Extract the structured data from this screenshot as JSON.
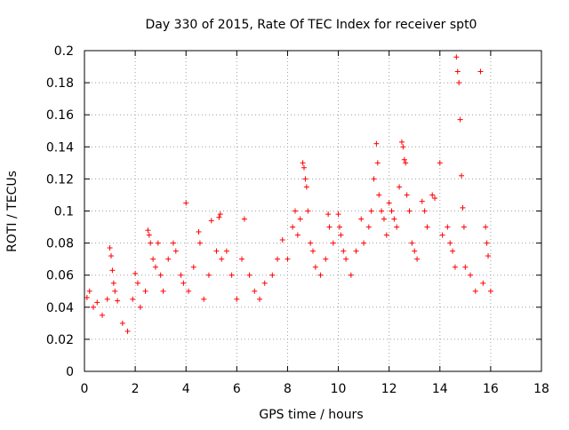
{
  "chart_data": {
    "type": "scatter",
    "title": "Day 330 of 2015, Rate Of TEC Index for receiver spt0",
    "xlabel": "GPS time / hours",
    "ylabel": "ROTI / TECUs",
    "xlim": [
      0,
      18
    ],
    "ylim": [
      0,
      0.2
    ],
    "x_ticks": [
      0,
      2,
      4,
      6,
      8,
      10,
      12,
      14,
      16,
      18
    ],
    "x_tick_labels": [
      "0",
      "2",
      "4",
      "6",
      "8",
      "10",
      "12",
      "14",
      "16",
      "18"
    ],
    "y_ticks": [
      0,
      0.02,
      0.04,
      0.06,
      0.08,
      0.1,
      0.12,
      0.14,
      0.16,
      0.18,
      0.2
    ],
    "y_tick_labels": [
      "0",
      "0.02",
      "0.04",
      "0.06",
      "0.08",
      "0.1",
      "0.12",
      "0.14",
      "0.16",
      "0.18",
      "0.2"
    ],
    "grid": true,
    "marker": "+",
    "marker_color": "#ff0000",
    "series": [
      {
        "name": "ROTI",
        "points": [
          [
            0.1,
            0.046
          ],
          [
            0.2,
            0.05
          ],
          [
            0.35,
            0.04
          ],
          [
            0.5,
            0.043
          ],
          [
            0.7,
            0.035
          ],
          [
            0.9,
            0.045
          ],
          [
            1.0,
            0.077
          ],
          [
            1.05,
            0.072
          ],
          [
            1.1,
            0.063
          ],
          [
            1.15,
            0.055
          ],
          [
            1.2,
            0.05
          ],
          [
            1.3,
            0.044
          ],
          [
            1.5,
            0.03
          ],
          [
            1.7,
            0.025
          ],
          [
            1.9,
            0.045
          ],
          [
            2.0,
            0.061
          ],
          [
            2.1,
            0.055
          ],
          [
            2.2,
            0.04
          ],
          [
            2.4,
            0.05
          ],
          [
            2.5,
            0.088
          ],
          [
            2.55,
            0.085
          ],
          [
            2.6,
            0.08
          ],
          [
            2.7,
            0.07
          ],
          [
            2.8,
            0.065
          ],
          [
            2.9,
            0.08
          ],
          [
            3.0,
            0.06
          ],
          [
            3.1,
            0.05
          ],
          [
            3.3,
            0.07
          ],
          [
            3.5,
            0.08
          ],
          [
            3.6,
            0.075
          ],
          [
            3.8,
            0.06
          ],
          [
            3.9,
            0.055
          ],
          [
            4.0,
            0.105
          ],
          [
            4.1,
            0.05
          ],
          [
            4.3,
            0.065
          ],
          [
            4.5,
            0.087
          ],
          [
            4.55,
            0.08
          ],
          [
            4.7,
            0.045
          ],
          [
            4.9,
            0.06
          ],
          [
            5.0,
            0.094
          ],
          [
            5.2,
            0.075
          ],
          [
            5.3,
            0.096
          ],
          [
            5.35,
            0.098
          ],
          [
            5.4,
            0.07
          ],
          [
            5.6,
            0.075
          ],
          [
            5.8,
            0.06
          ],
          [
            6.0,
            0.045
          ],
          [
            6.2,
            0.07
          ],
          [
            6.3,
            0.095
          ],
          [
            6.5,
            0.06
          ],
          [
            6.7,
            0.05
          ],
          [
            6.9,
            0.045
          ],
          [
            7.1,
            0.055
          ],
          [
            7.4,
            0.06
          ],
          [
            7.6,
            0.07
          ],
          [
            7.8,
            0.082
          ],
          [
            8.0,
            0.07
          ],
          [
            8.2,
            0.09
          ],
          [
            8.3,
            0.1
          ],
          [
            8.4,
            0.085
          ],
          [
            8.5,
            0.095
          ],
          [
            8.6,
            0.13
          ],
          [
            8.65,
            0.127
          ],
          [
            8.7,
            0.12
          ],
          [
            8.75,
            0.115
          ],
          [
            8.8,
            0.1
          ],
          [
            8.9,
            0.08
          ],
          [
            9.0,
            0.075
          ],
          [
            9.1,
            0.065
          ],
          [
            9.3,
            0.06
          ],
          [
            9.5,
            0.07
          ],
          [
            9.6,
            0.098
          ],
          [
            9.65,
            0.09
          ],
          [
            9.8,
            0.08
          ],
          [
            10.0,
            0.098
          ],
          [
            10.05,
            0.09
          ],
          [
            10.1,
            0.085
          ],
          [
            10.2,
            0.075
          ],
          [
            10.3,
            0.07
          ],
          [
            10.5,
            0.06
          ],
          [
            10.7,
            0.075
          ],
          [
            10.9,
            0.095
          ],
          [
            11.0,
            0.08
          ],
          [
            11.2,
            0.09
          ],
          [
            11.3,
            0.1
          ],
          [
            11.4,
            0.12
          ],
          [
            11.5,
            0.142
          ],
          [
            11.55,
            0.13
          ],
          [
            11.6,
            0.11
          ],
          [
            11.7,
            0.1
          ],
          [
            11.8,
            0.095
          ],
          [
            11.9,
            0.085
          ],
          [
            12.0,
            0.105
          ],
          [
            12.1,
            0.1
          ],
          [
            12.2,
            0.095
          ],
          [
            12.3,
            0.09
          ],
          [
            12.4,
            0.115
          ],
          [
            12.5,
            0.143
          ],
          [
            12.55,
            0.14
          ],
          [
            12.6,
            0.132
          ],
          [
            12.65,
            0.13
          ],
          [
            12.7,
            0.11
          ],
          [
            12.8,
            0.1
          ],
          [
            12.9,
            0.08
          ],
          [
            13.0,
            0.075
          ],
          [
            13.1,
            0.07
          ],
          [
            13.3,
            0.106
          ],
          [
            13.4,
            0.1
          ],
          [
            13.5,
            0.09
          ],
          [
            13.7,
            0.11
          ],
          [
            13.8,
            0.108
          ],
          [
            14.0,
            0.13
          ],
          [
            14.1,
            0.085
          ],
          [
            14.3,
            0.09
          ],
          [
            14.4,
            0.08
          ],
          [
            14.5,
            0.075
          ],
          [
            14.6,
            0.065
          ],
          [
            14.65,
            0.196
          ],
          [
            14.7,
            0.187
          ],
          [
            14.75,
            0.18
          ],
          [
            14.8,
            0.157
          ],
          [
            14.85,
            0.122
          ],
          [
            14.9,
            0.102
          ],
          [
            14.95,
            0.09
          ],
          [
            15.0,
            0.065
          ],
          [
            15.2,
            0.06
          ],
          [
            15.4,
            0.05
          ],
          [
            15.6,
            0.187
          ],
          [
            15.7,
            0.055
          ],
          [
            15.8,
            0.09
          ],
          [
            15.85,
            0.08
          ],
          [
            15.9,
            0.072
          ],
          [
            16.0,
            0.05
          ]
        ]
      }
    ]
  }
}
